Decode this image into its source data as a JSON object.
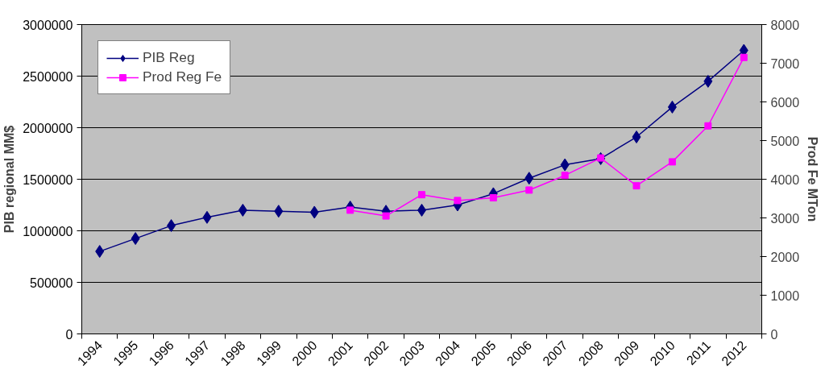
{
  "chart_data": {
    "type": "line",
    "categories": [
      "1994",
      "1995",
      "1996",
      "1997",
      "1998",
      "1999",
      "2000",
      "2001",
      "2002",
      "2003",
      "2004",
      "2005",
      "2006",
      "2007",
      "2008",
      "2009",
      "2010",
      "2011",
      "2012"
    ],
    "series": [
      {
        "name": "PIB Reg",
        "color": "#000080",
        "marker": "diamond",
        "values": [
          800000,
          925000,
          1050000,
          1130000,
          1200000,
          1190000,
          1180000,
          1230000,
          1190000,
          1200000,
          1250000,
          1360000,
          1510000,
          1640000,
          1700000,
          1910000,
          2200000,
          2450000,
          2750000
        ]
      },
      {
        "name": "Prod Reg Fe",
        "color": "#ff00ff",
        "marker": "square",
        "axis": "y2",
        "values": [
          null,
          null,
          null,
          null,
          null,
          null,
          null,
          3200,
          3050,
          3600,
          3450,
          3520,
          3720,
          4100,
          4550,
          3830,
          4450,
          5380,
          7150
        ]
      }
    ],
    "ylabel": "PIB regional MM$",
    "y2label": "Prod Fe MTon",
    "ylim": [
      0,
      3000000
    ],
    "yticks": [
      0,
      500000,
      1000000,
      1500000,
      2000000,
      2500000,
      3000000
    ],
    "y2lim": [
      0,
      8000
    ],
    "y2ticks": [
      0,
      1000,
      2000,
      3000,
      4000,
      5000,
      6000,
      7000,
      8000
    ],
    "grid": "y",
    "legend": "top left",
    "line_style": "solid"
  }
}
